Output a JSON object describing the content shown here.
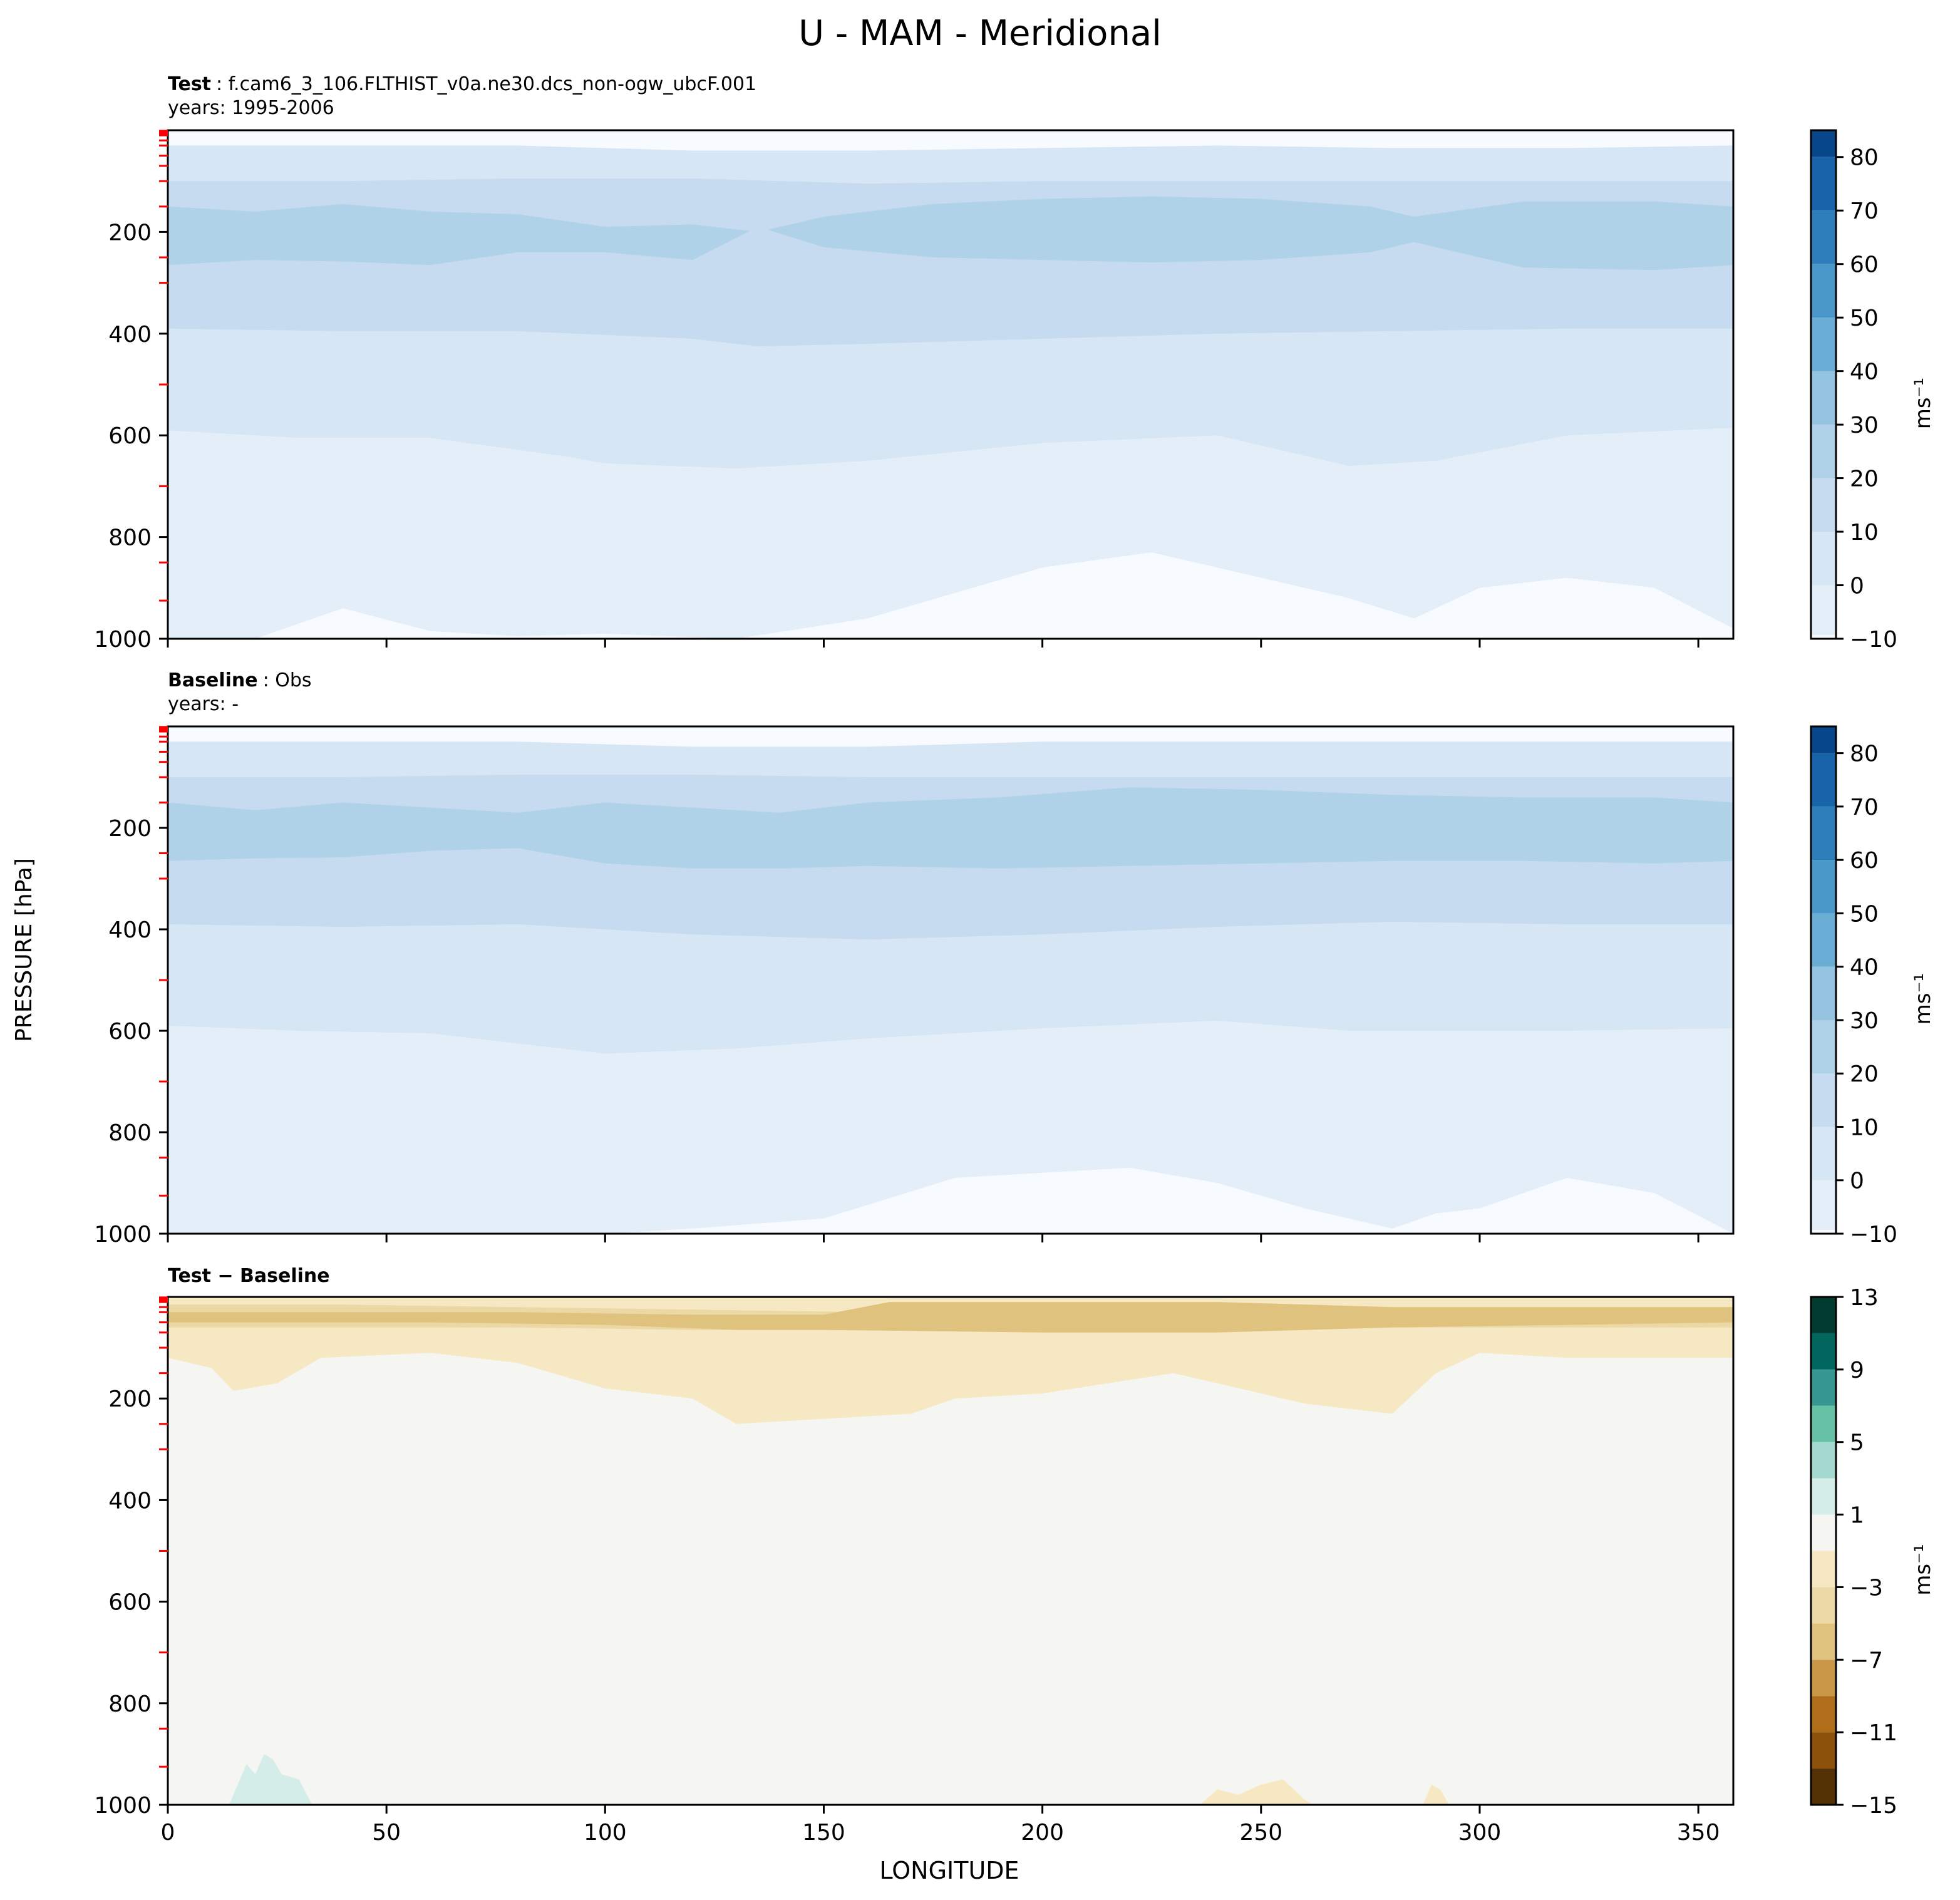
{
  "figure": {
    "title": "U - MAM - Meridional",
    "ylabel": "PRESSURE [hPa]",
    "xlabel": "LONGITUDE"
  },
  "colors": {
    "blues": [
      "#f7fbff",
      "#e3eef9",
      "#d6e6f4",
      "#c6dbef",
      "#b0d2e8",
      "#94c4df",
      "#6aaed6",
      "#4a98c9",
      "#2e7ebc",
      "#1764ab",
      "#08468b",
      "#08306b"
    ],
    "brbg": [
      "#543005",
      "#8c510a",
      "#b06e1a",
      "#c89848",
      "#dfc27d",
      "#ecd8a4",
      "#f6e8c3",
      "#f5f5f2",
      "#d4ede8",
      "#a5d9cf",
      "#66c2a5",
      "#35978f",
      "#01665e",
      "#003c30"
    ],
    "axis_ticks_red": "#ff0000"
  },
  "chart_data": [
    {
      "type": "contour",
      "panel": "test",
      "label_bold": "Test",
      "label_text": ": f.cam6_3_106.FLTHIST_v0a.ne30.dcs_non-ogw_ubcF.001",
      "years_label": "years: 1995-2006",
      "xlim": [
        0,
        358
      ],
      "ylim": [
        1000,
        0
      ],
      "yticks": [
        200,
        400,
        600,
        800,
        1000
      ],
      "xticks": [
        0,
        50,
        100,
        150,
        200,
        250,
        300,
        350
      ],
      "show_xticklabels": false,
      "colorbar": {
        "ticks": [
          "80",
          "70",
          "60",
          "50",
          "40",
          "30",
          "20",
          "10",
          "0",
          "−10"
        ],
        "unit": "ms⁻¹",
        "levels": [
          -10,
          0,
          10,
          20,
          30,
          40,
          50,
          60,
          70,
          80,
          85
        ]
      },
      "contour_boundaries": [
        {
          "color_index": 0,
          "x": [
            0,
            40,
            80,
            120,
            160,
            200,
            240,
            280,
            320,
            358
          ],
          "y": [
            0,
            0,
            0,
            0,
            0,
            0,
            0,
            0,
            0,
            0
          ]
        },
        {
          "color_index": 2,
          "x": [
            0,
            40,
            80,
            120,
            160,
            200,
            240,
            280,
            320,
            358
          ],
          "y": [
            30,
            30,
            30,
            40,
            40,
            35,
            30,
            35,
            35,
            30
          ]
        },
        {
          "color_index": 3,
          "x": [
            0,
            40,
            80,
            120,
            160,
            200,
            240,
            280,
            320,
            358
          ],
          "y": [
            100,
            100,
            95,
            95,
            105,
            100,
            100,
            100,
            100,
            100
          ]
        },
        {
          "color_index": 4,
          "x": [
            0,
            20,
            40,
            60,
            80,
            100,
            120,
            135,
            150,
            175,
            200,
            225,
            250,
            275,
            285,
            310,
            340,
            358
          ],
          "y": [
            150,
            160,
            145,
            160,
            165,
            190,
            185,
            200,
            170,
            145,
            135,
            130,
            135,
            150,
            170,
            140,
            140,
            150
          ]
        },
        {
          "color_index": 3,
          "x": [
            0,
            20,
            40,
            60,
            80,
            100,
            120,
            135,
            150,
            175,
            200,
            225,
            250,
            275,
            285,
            310,
            340,
            358
          ],
          "y": [
            265,
            255,
            258,
            265,
            240,
            240,
            255,
            190,
            230,
            250,
            255,
            260,
            255,
            240,
            220,
            270,
            275,
            265
          ]
        },
        {
          "color_index": 2,
          "x": [
            0,
            40,
            80,
            120,
            135,
            160,
            200,
            240,
            280,
            320,
            358
          ],
          "y": [
            390,
            395,
            395,
            410,
            425,
            420,
            410,
            400,
            395,
            390,
            390
          ]
        },
        {
          "color_index": 1,
          "x": [
            0,
            30,
            60,
            90,
            100,
            130,
            160,
            200,
            240,
            270,
            290,
            320,
            358
          ],
          "y": [
            590,
            605,
            605,
            640,
            655,
            665,
            650,
            615,
            600,
            660,
            650,
            600,
            585
          ]
        },
        {
          "color_index": 0,
          "x": [
            0,
            20,
            40,
            60,
            80,
            100,
            130,
            160,
            200,
            225,
            250,
            270,
            285,
            300,
            320,
            340,
            358
          ],
          "y": [
            1000,
            1000,
            940,
            985,
            995,
            990,
            1000,
            960,
            860,
            830,
            880,
            920,
            960,
            900,
            880,
            900,
            980
          ]
        }
      ]
    },
    {
      "type": "contour",
      "panel": "baseline",
      "label_bold": "Baseline",
      "label_text": ": Obs",
      "years_label": "years: -",
      "xlim": [
        0,
        358
      ],
      "ylim": [
        1000,
        0
      ],
      "yticks": [
        200,
        400,
        600,
        800,
        1000
      ],
      "xticks": [
        0,
        50,
        100,
        150,
        200,
        250,
        300,
        350
      ],
      "show_xticklabels": false,
      "colorbar": {
        "ticks": [
          "80",
          "70",
          "60",
          "50",
          "40",
          "30",
          "20",
          "10",
          "0",
          "−10"
        ],
        "unit": "ms⁻¹",
        "levels": [
          -10,
          0,
          10,
          20,
          30,
          40,
          50,
          60,
          70,
          80,
          85
        ]
      },
      "contour_boundaries": [
        {
          "color_index": 0,
          "x": [
            0,
            40,
            80,
            120,
            160,
            200,
            240,
            280,
            320,
            358
          ],
          "y": [
            0,
            0,
            0,
            0,
            0,
            0,
            0,
            0,
            0,
            0
          ]
        },
        {
          "color_index": 2,
          "x": [
            0,
            40,
            80,
            120,
            160,
            200,
            240,
            280,
            320,
            358
          ],
          "y": [
            30,
            30,
            30,
            40,
            40,
            30,
            30,
            30,
            30,
            30
          ]
        },
        {
          "color_index": 3,
          "x": [
            0,
            40,
            80,
            120,
            160,
            200,
            240,
            280,
            320,
            358
          ],
          "y": [
            100,
            100,
            95,
            95,
            100,
            100,
            100,
            100,
            100,
            100
          ]
        },
        {
          "color_index": 4,
          "x": [
            0,
            20,
            40,
            60,
            80,
            100,
            120,
            140,
            160,
            190,
            220,
            250,
            280,
            310,
            340,
            358
          ],
          "y": [
            150,
            165,
            150,
            160,
            170,
            150,
            160,
            170,
            150,
            140,
            120,
            125,
            135,
            140,
            140,
            150
          ]
        },
        {
          "color_index": 3,
          "x": [
            0,
            20,
            40,
            60,
            80,
            100,
            120,
            140,
            160,
            190,
            220,
            250,
            280,
            310,
            340,
            358
          ],
          "y": [
            265,
            260,
            258,
            245,
            240,
            270,
            280,
            280,
            275,
            280,
            275,
            270,
            265,
            265,
            270,
            265
          ]
        },
        {
          "color_index": 2,
          "x": [
            0,
            40,
            80,
            120,
            160,
            200,
            240,
            280,
            320,
            358
          ],
          "y": [
            390,
            395,
            390,
            410,
            420,
            410,
            395,
            385,
            390,
            390
          ]
        },
        {
          "color_index": 1,
          "x": [
            0,
            30,
            60,
            90,
            100,
            130,
            160,
            200,
            240,
            270,
            290,
            320,
            358
          ],
          "y": [
            590,
            600,
            605,
            635,
            645,
            635,
            615,
            595,
            580,
            600,
            600,
            600,
            595
          ]
        },
        {
          "color_index": 0,
          "x": [
            0,
            20,
            40,
            60,
            80,
            100,
            120,
            150,
            180,
            220,
            240,
            260,
            280,
            290,
            300,
            320,
            340,
            358
          ],
          "y": [
            1000,
            1000,
            1000,
            1000,
            1000,
            1000,
            990,
            970,
            890,
            870,
            900,
            950,
            990,
            960,
            950,
            890,
            920,
            1000
          ]
        }
      ]
    },
    {
      "type": "contour",
      "panel": "difference",
      "label_bold": "Test − Baseline",
      "label_text": "",
      "years_label": "",
      "xlim": [
        0,
        358
      ],
      "ylim": [
        1000,
        0
      ],
      "yticks": [
        200,
        400,
        600,
        800,
        1000
      ],
      "xticks": [
        0,
        50,
        100,
        150,
        200,
        250,
        300,
        350
      ],
      "xticklabels": [
        "0",
        "50",
        "100",
        "150",
        "200",
        "250",
        "300",
        "350"
      ],
      "show_xticklabels": true,
      "colorbar": {
        "ticks": [
          "13",
          "9",
          "5",
          "1",
          "−3",
          "−7",
          "−11",
          "−15"
        ],
        "unit": "ms⁻¹",
        "levels": [
          -15,
          -13,
          -11,
          -9,
          -7,
          -5,
          -3,
          -1,
          1,
          3,
          5,
          7,
          9,
          11,
          13
        ]
      },
      "contour_boundaries": [
        {
          "color_index": 7,
          "x": [
            0,
            40,
            80,
            120,
            160,
            200,
            240,
            280,
            320,
            358
          ],
          "y": [
            0,
            0,
            0,
            0,
            0,
            0,
            0,
            0,
            0,
            0
          ]
        },
        {
          "color_index": 6,
          "x": [
            0,
            40,
            80,
            120,
            160,
            200,
            240,
            280,
            320,
            358
          ],
          "y": [
            0,
            0,
            0,
            0,
            0,
            0,
            0,
            0,
            0,
            0
          ]
        },
        {
          "color_index": 5,
          "x": [
            0,
            40,
            80,
            120,
            160,
            200,
            240,
            280,
            320,
            358
          ],
          "y": [
            15,
            15,
            20,
            25,
            30,
            30,
            30,
            30,
            25,
            20
          ]
        },
        {
          "color_index": 4,
          "x": [
            0,
            80,
            120,
            150,
            165,
            200,
            240,
            280,
            320,
            358
          ],
          "y": [
            30,
            30,
            35,
            35,
            10,
            10,
            10,
            20,
            20,
            20
          ]
        },
        {
          "color_index": 5,
          "x": [
            0,
            60,
            100,
            130,
            160,
            200,
            240,
            280,
            320,
            358
          ],
          "y": [
            50,
            50,
            55,
            65,
            90,
            95,
            80,
            60,
            55,
            50
          ]
        },
        {
          "color_index": 6,
          "x": [
            0,
            40,
            80,
            120,
            150,
            200,
            240,
            280,
            320,
            358
          ],
          "y": [
            60,
            60,
            60,
            65,
            65,
            70,
            70,
            60,
            60,
            60
          ]
        },
        {
          "color_index": 7,
          "x": [
            0,
            10,
            15,
            25,
            35,
            60,
            80,
            100,
            120,
            130,
            150,
            170,
            180,
            200,
            230,
            260,
            275,
            280,
            290,
            300,
            320,
            358
          ],
          "y": [
            120,
            140,
            185,
            170,
            120,
            110,
            130,
            180,
            200,
            250,
            240,
            230,
            200,
            190,
            150,
            210,
            225,
            230,
            150,
            110,
            120,
            120
          ]
        },
        {
          "color_index": 8,
          "x": [
            14,
            18,
            20,
            22,
            24,
            26,
            30,
            33
          ],
          "y": [
            1000,
            920,
            940,
            900,
            910,
            940,
            950,
            1000
          ]
        },
        {
          "color_index": 6,
          "x": [
            236,
            240,
            245,
            250,
            255,
            260,
            262
          ],
          "y": [
            1000,
            970,
            980,
            960,
            950,
            990,
            1000
          ]
        },
        {
          "color_index": 6,
          "x": [
            287,
            289,
            291,
            293
          ],
          "y": [
            1000,
            960,
            970,
            1000
          ]
        }
      ]
    }
  ]
}
